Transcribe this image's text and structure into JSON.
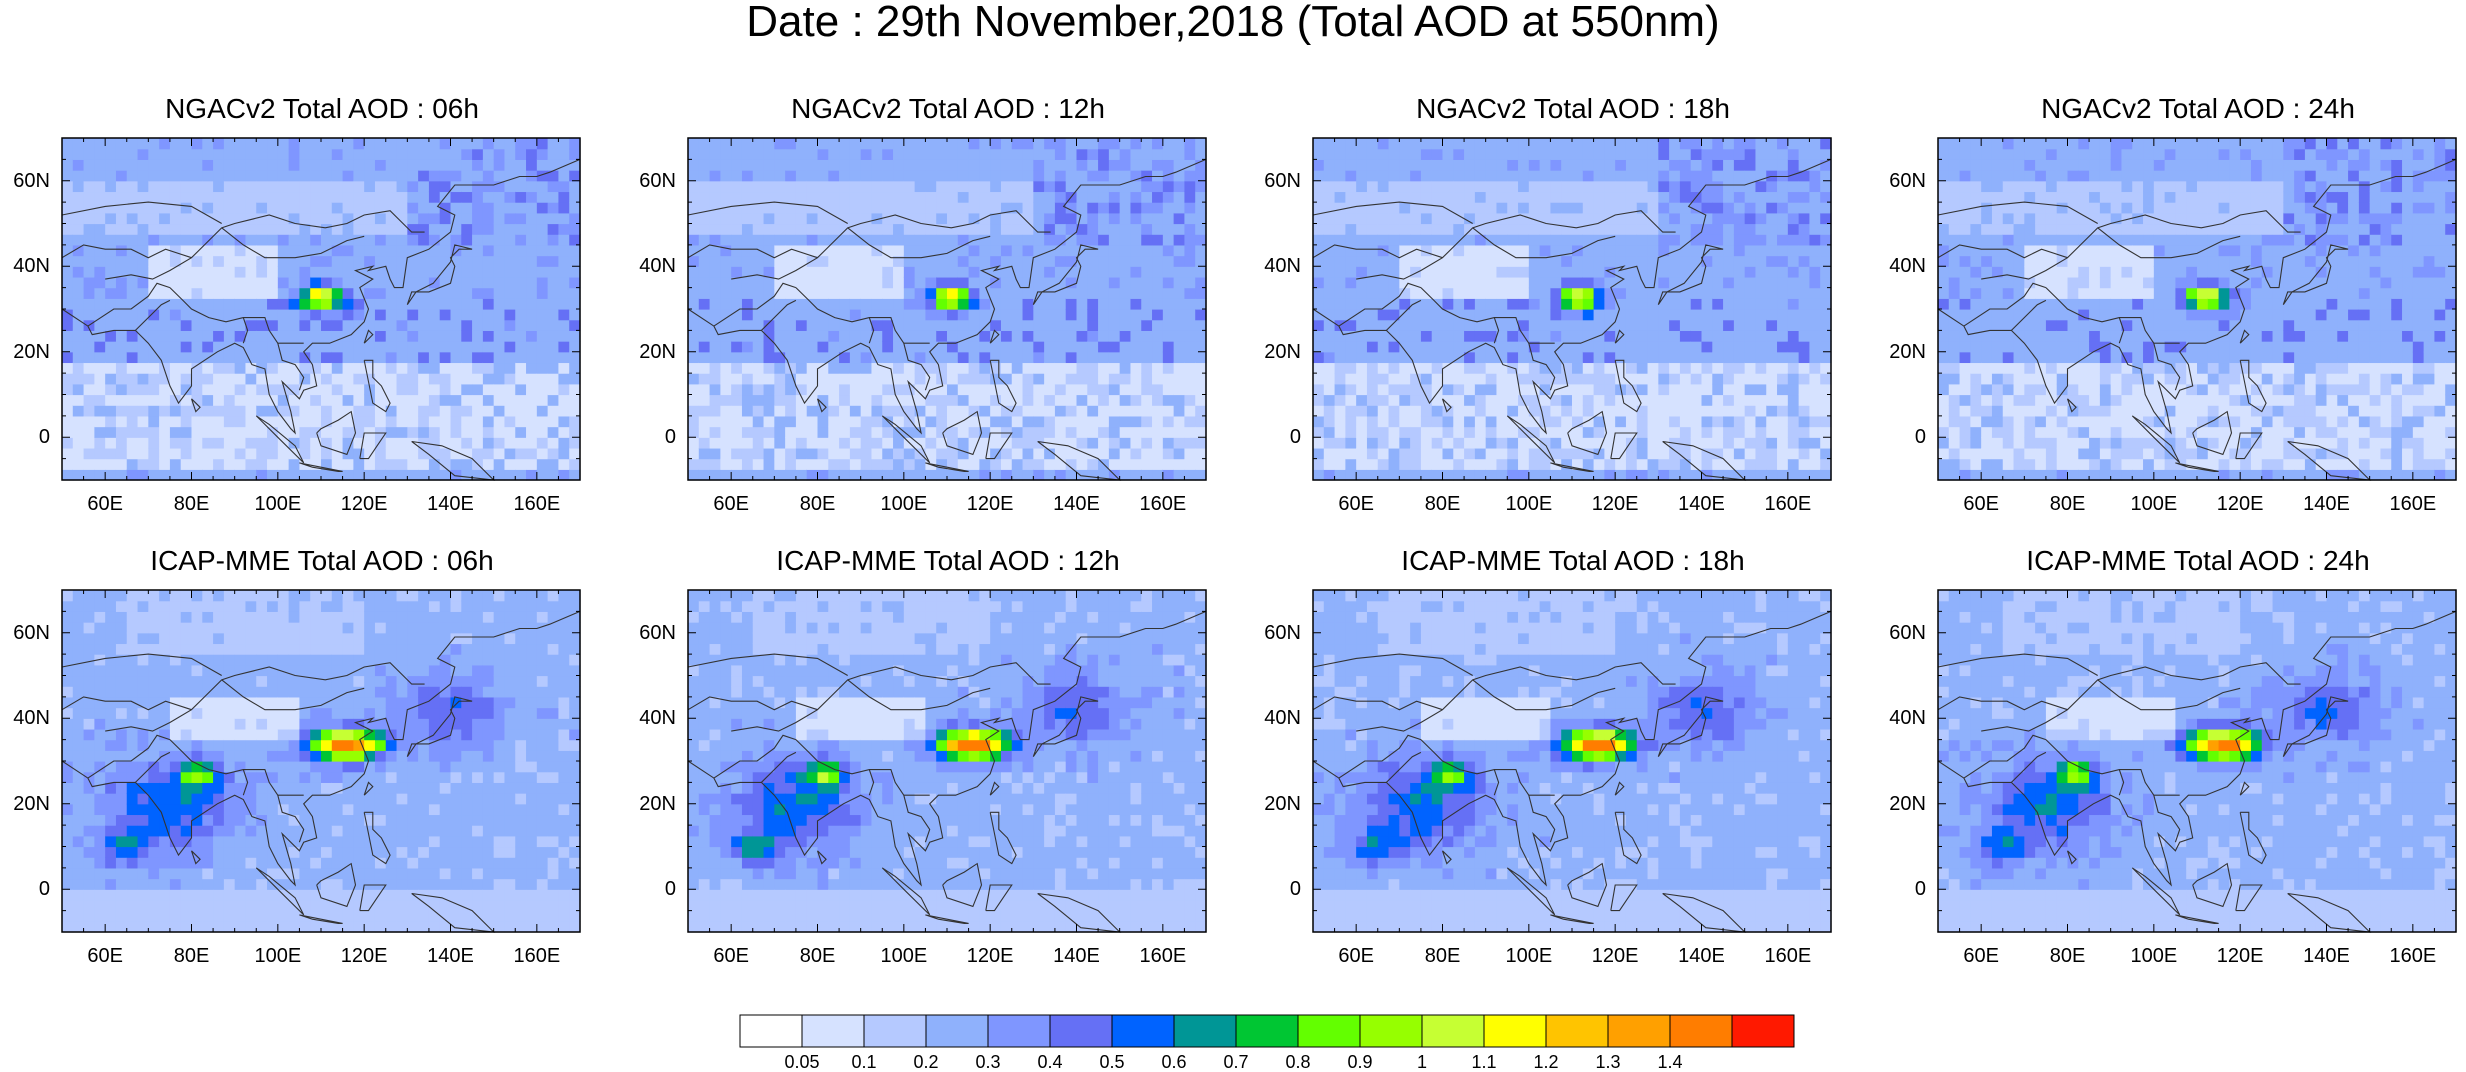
{
  "title": "Date : 29th November,2018 (Total AOD at 550nm)",
  "panels": [
    {
      "title": "NGACv2 Total AOD : 06h",
      "model": "ngac"
    },
    {
      "title": "NGACv2 Total AOD : 12h",
      "model": "ngac"
    },
    {
      "title": "NGACv2 Total AOD : 18h",
      "model": "ngac"
    },
    {
      "title": "NGACv2 Total AOD : 24h",
      "model": "ngac"
    },
    {
      "title": "ICAP-MME Total AOD : 06h",
      "model": "icap"
    },
    {
      "title": "ICAP-MME Total AOD : 12h",
      "model": "icap"
    },
    {
      "title": "ICAP-MME Total AOD : 18h",
      "model": "icap"
    },
    {
      "title": "ICAP-MME Total AOD : 24h",
      "model": "icap"
    }
  ],
  "axes": {
    "lon_range": [
      50,
      170
    ],
    "lat_range": [
      -10,
      70
    ],
    "lon_ticks": [
      "60E",
      "80E",
      "100E",
      "120E",
      "140E",
      "160E"
    ],
    "lon_tick_values": [
      60,
      80,
      100,
      120,
      140,
      160
    ],
    "lat_ticks": [
      "60N",
      "40N",
      "20N",
      "0"
    ],
    "lat_tick_values": [
      60,
      40,
      20,
      0
    ]
  },
  "colorbar": {
    "labels": [
      "0.05",
      "0.1",
      "0.2",
      "0.3",
      "0.4",
      "0.5",
      "0.6",
      "0.7",
      "0.8",
      "0.9",
      "1",
      "1.1",
      "1.2",
      "1.3",
      "1.4"
    ],
    "colors": [
      "#ffffff",
      "#d6e2ff",
      "#b5c9ff",
      "#8fb1fc",
      "#7f96ff",
      "#6570f5",
      "#0063ff",
      "#009696",
      "#00c633",
      "#63ff00",
      "#96ff00",
      "#c6ff33",
      "#ffff00",
      "#ffc400",
      "#ffa000",
      "#ff7d00",
      "#ff1900"
    ]
  }
}
